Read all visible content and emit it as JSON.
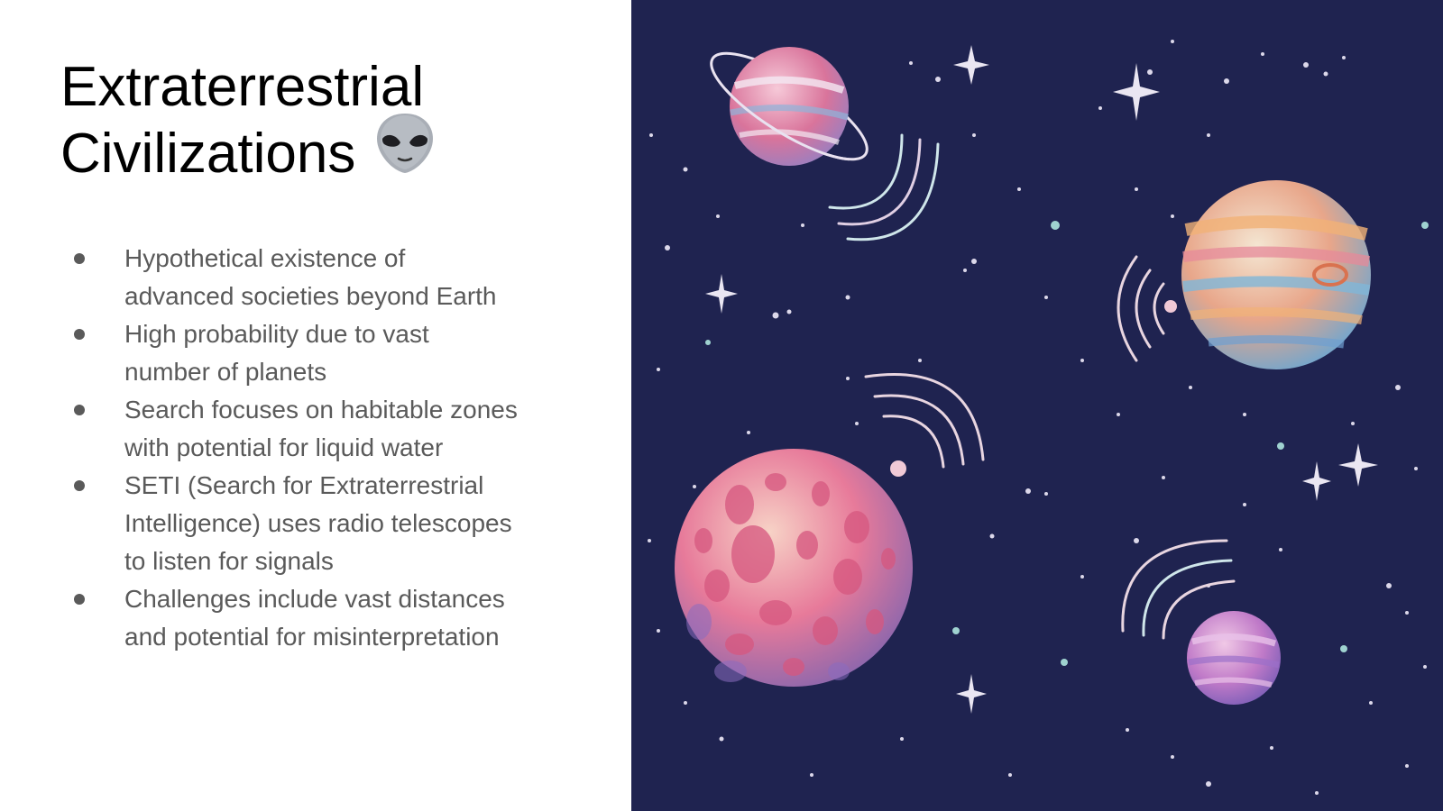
{
  "slide": {
    "title_line1": "Extraterrestrial",
    "title_line2": "Civilizations",
    "title_icon": "alien-face-icon",
    "bullets": [
      {
        "line1": "Hypothetical existence of",
        "line2": "advanced societies beyond Earth"
      },
      {
        "line1": "High probability due to vast",
        "line2": "number of planets"
      },
      {
        "line1": "Search focuses on habitable zones",
        "line2": "with potential for liquid water"
      },
      {
        "line1": "SETI (Search for Extraterrestrial",
        "line2": "Intelligence) uses radio telescopes",
        "line3": "to listen for signals"
      },
      {
        "line1": "Challenges include vast distances",
        "line2": "and potential for misinterpretation"
      }
    ]
  },
  "illustration": {
    "background": "#1f2350",
    "planet_colors": [
      "#e77a9a",
      "#f3c08c",
      "#7fb6d8",
      "#b978c4"
    ],
    "star_color": "#e8e4f0"
  }
}
